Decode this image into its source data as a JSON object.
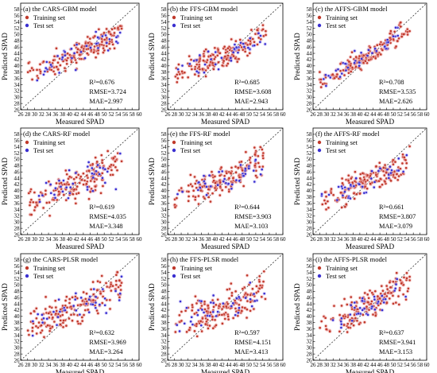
{
  "xlabel": "Measured SPAD",
  "ylabel": "Predicted SPAD",
  "legend": {
    "train_label": "Training set",
    "test_label": "Test set"
  },
  "colors": {
    "train": "#c0392b",
    "test": "#3a2fd0",
    "train_halo": "#f2b6b6",
    "test_halo": "#c9c2f5",
    "identity_line": "#333333"
  },
  "chart_data": [
    {
      "type": "scatter",
      "title": "(a) the CARS-GBM model",
      "xlim": [
        26,
        60
      ],
      "ylim": [
        26,
        60
      ],
      "legend_position": "top-left",
      "metrics": {
        "r2": "R²=0.676",
        "rmse": "RMSE=3.724",
        "mae": "MAE=2.997"
      },
      "trend": {
        "train": [
          [
            30,
            39.5
          ],
          [
            36,
            41
          ],
          [
            42,
            43.5
          ],
          [
            48,
            46.5
          ],
          [
            53,
            50
          ]
        ],
        "test": [
          [
            30,
            39
          ],
          [
            36,
            41
          ],
          [
            42,
            43.5
          ],
          [
            48,
            47.5
          ],
          [
            52,
            48.5
          ]
        ]
      },
      "x_ticks": [
        26,
        28,
        30,
        32,
        34,
        36,
        38,
        40,
        42,
        44,
        46,
        48,
        50,
        52,
        54,
        56,
        58,
        60
      ],
      "y_ticks": [
        26,
        28,
        30,
        32,
        34,
        36,
        38,
        40,
        42,
        44,
        46,
        48,
        50,
        52,
        54,
        56,
        58
      ]
    },
    {
      "type": "scatter",
      "title": "(d) the CARS-RF model",
      "xlim": [
        26,
        60
      ],
      "ylim": [
        26,
        60
      ],
      "legend_position": "top-left",
      "metrics": {
        "r2": "R²=0.619",
        "rmse": "RMSE=4.035",
        "mae": "MAE=3.348"
      },
      "trend": {
        "train": [
          [
            30,
            37.5
          ],
          [
            36,
            40.5
          ],
          [
            42,
            42.5
          ],
          [
            48,
            45
          ],
          [
            53,
            48.5
          ]
        ],
        "test": [
          [
            30,
            38
          ],
          [
            36,
            40.5
          ],
          [
            42,
            43
          ],
          [
            48,
            45.5
          ],
          [
            52,
            47
          ]
        ]
      },
      "x_ticks": [
        26,
        28,
        30,
        32,
        34,
        36,
        38,
        40,
        42,
        44,
        46,
        48,
        50,
        52,
        54,
        56,
        58,
        60
      ],
      "y_ticks": [
        26,
        28,
        30,
        32,
        34,
        36,
        38,
        40,
        42,
        44,
        46,
        48,
        50,
        52,
        54,
        56,
        58
      ]
    },
    {
      "type": "scatter",
      "title": "(g) the CARS-PLSR model",
      "xlim": [
        26,
        60
      ],
      "ylim": [
        26,
        60
      ],
      "legend_position": "top-left",
      "metrics": {
        "r2": "R²=0.632",
        "rmse": "RMSE=3.969",
        "mae": "MAE=3.264"
      },
      "trend": {
        "train": [
          [
            30,
            38
          ],
          [
            36,
            40.5
          ],
          [
            42,
            43
          ],
          [
            48,
            46
          ],
          [
            53,
            49
          ]
        ],
        "test": [
          [
            30,
            38.5
          ],
          [
            36,
            41
          ],
          [
            42,
            43
          ],
          [
            48,
            46
          ],
          [
            52,
            47.5
          ]
        ]
      },
      "x_ticks": [
        26,
        28,
        30,
        32,
        34,
        36,
        38,
        40,
        42,
        44,
        46,
        48,
        50,
        52,
        54,
        56,
        58,
        60
      ],
      "y_ticks": [
        26,
        28,
        30,
        32,
        34,
        36,
        38,
        40,
        42,
        44,
        46,
        48,
        50,
        52,
        54,
        56,
        58
      ]
    },
    {
      "type": "scatter",
      "title": "(b) the FFS-GBM model",
      "xlim": [
        26,
        60
      ],
      "ylim": [
        26,
        60
      ],
      "legend_position": "top-left",
      "metrics": {
        "r2": "R²=0.685",
        "rmse": "RMSE=3.608",
        "mae": "MAE=2.943"
      },
      "trend": {
        "train": [
          [
            30,
            38
          ],
          [
            36,
            40.5
          ],
          [
            42,
            43
          ],
          [
            48,
            46
          ],
          [
            53,
            49.5
          ]
        ],
        "test": [
          [
            30,
            38.5
          ],
          [
            36,
            41
          ],
          [
            42,
            43.5
          ],
          [
            48,
            46.5
          ],
          [
            52,
            48
          ]
        ]
      },
      "x_ticks": [
        26,
        28,
        30,
        32,
        34,
        36,
        38,
        40,
        42,
        44,
        46,
        48,
        50,
        52,
        54,
        56,
        58,
        60
      ],
      "y_ticks": [
        26,
        28,
        30,
        32,
        34,
        36,
        38,
        40,
        42,
        44,
        46,
        48,
        50,
        52,
        54,
        56,
        58
      ]
    },
    {
      "type": "scatter",
      "title": "(e) the FFS-RF model",
      "xlim": [
        26,
        60
      ],
      "ylim": [
        26,
        60
      ],
      "legend_position": "top-left",
      "metrics": {
        "r2": "R²=0.644",
        "rmse": "RMSE=3.903",
        "mae": "MAE=3.103"
      },
      "trend": {
        "train": [
          [
            30,
            38.5
          ],
          [
            36,
            40.5
          ],
          [
            42,
            43
          ],
          [
            48,
            45.5
          ],
          [
            53,
            49
          ]
        ],
        "test": [
          [
            30,
            38
          ],
          [
            36,
            40.5
          ],
          [
            42,
            43
          ],
          [
            48,
            46
          ],
          [
            52,
            47.5
          ]
        ]
      },
      "x_ticks": [
        26,
        28,
        30,
        32,
        34,
        36,
        38,
        40,
        42,
        44,
        46,
        48,
        50,
        52,
        54,
        56,
        58,
        60
      ],
      "y_ticks": [
        26,
        28,
        30,
        32,
        34,
        36,
        38,
        40,
        42,
        44,
        46,
        48,
        50,
        52,
        54,
        56,
        58
      ]
    },
    {
      "type": "scatter",
      "title": "(h) the FFS-PLSR model",
      "xlim": [
        26,
        60
      ],
      "ylim": [
        26,
        60
      ],
      "legend_position": "top-left",
      "metrics": {
        "r2": "R²=0.597",
        "rmse": "RMSE=4.151",
        "mae": "MAE=3.413"
      },
      "trend": {
        "train": [
          [
            30,
            39
          ],
          [
            36,
            40.5
          ],
          [
            42,
            42.5
          ],
          [
            48,
            45
          ],
          [
            53,
            48
          ]
        ],
        "test": [
          [
            30,
            39.5
          ],
          [
            36,
            41
          ],
          [
            42,
            43
          ],
          [
            48,
            45.5
          ],
          [
            52,
            46.5
          ]
        ]
      },
      "x_ticks": [
        26,
        28,
        30,
        32,
        34,
        36,
        38,
        40,
        42,
        44,
        46,
        48,
        50,
        52,
        54,
        56,
        58,
        60
      ],
      "y_ticks": [
        26,
        28,
        30,
        32,
        34,
        36,
        38,
        40,
        42,
        44,
        46,
        48,
        50,
        52,
        54,
        56,
        58
      ]
    },
    {
      "type": "scatter",
      "title": "(c) the AFFS-GBM model",
      "xlim": [
        26,
        60
      ],
      "ylim": [
        26,
        60
      ],
      "legend_position": "top-left",
      "metrics": {
        "r2": "R²=0.708",
        "rmse": "RMSE=3.535",
        "mae": "MAE=2.626"
      },
      "trend": {
        "train": [
          [
            30,
            35.5
          ],
          [
            36,
            39.5
          ],
          [
            42,
            43
          ],
          [
            48,
            47
          ],
          [
            53,
            51
          ]
        ],
        "test": [
          [
            30,
            36.5
          ],
          [
            36,
            40
          ],
          [
            42,
            43.5
          ],
          [
            48,
            47
          ],
          [
            52,
            49.5
          ]
        ]
      },
      "x_ticks": [
        26,
        28,
        30,
        32,
        34,
        36,
        38,
        40,
        42,
        44,
        46,
        48,
        50,
        52,
        54,
        56,
        58,
        60
      ],
      "y_ticks": [
        26,
        28,
        30,
        32,
        34,
        36,
        38,
        40,
        42,
        44,
        46,
        48,
        50,
        52,
        54,
        56,
        58
      ]
    },
    {
      "type": "scatter",
      "title": "(f) the AFFS-RF model",
      "xlim": [
        26,
        60
      ],
      "ylim": [
        26,
        60
      ],
      "legend_position": "top-left",
      "metrics": {
        "r2": "R²=0.661",
        "rmse": "RMSE=3.807",
        "mae": "MAE=3.079"
      },
      "trend": {
        "train": [
          [
            30,
            38
          ],
          [
            36,
            40.5
          ],
          [
            42,
            43
          ],
          [
            48,
            45.5
          ],
          [
            53,
            48.5
          ]
        ],
        "test": [
          [
            30,
            38
          ],
          [
            36,
            40.5
          ],
          [
            42,
            43
          ],
          [
            48,
            46
          ],
          [
            52,
            47.5
          ]
        ]
      },
      "x_ticks": [
        26,
        28,
        30,
        32,
        34,
        36,
        38,
        40,
        42,
        44,
        46,
        48,
        50,
        52,
        54,
        56,
        58,
        60
      ],
      "y_ticks": [
        26,
        28,
        30,
        32,
        34,
        36,
        38,
        40,
        42,
        44,
        46,
        48,
        50,
        52,
        54,
        56,
        58
      ]
    },
    {
      "type": "scatter",
      "title": "(i) the AFFS-PLSR model",
      "xlim": [
        26,
        60
      ],
      "ylim": [
        26,
        60
      ],
      "legend_position": "top-left",
      "metrics": {
        "r2": "R²=0.637",
        "rmse": "RMSE=3.941",
        "mae": "MAE=3.153"
      },
      "trend": {
        "train": [
          [
            30,
            37.5
          ],
          [
            36,
            40.5
          ],
          [
            42,
            43
          ],
          [
            48,
            46
          ],
          [
            53,
            49.5
          ]
        ],
        "test": [
          [
            30,
            38
          ],
          [
            36,
            40.5
          ],
          [
            42,
            43.5
          ],
          [
            48,
            46
          ],
          [
            52,
            47.5
          ]
        ]
      },
      "x_ticks": [
        26,
        28,
        30,
        32,
        34,
        36,
        38,
        40,
        42,
        44,
        46,
        48,
        50,
        52,
        54,
        56,
        58,
        60
      ],
      "y_ticks": [
        26,
        28,
        30,
        32,
        34,
        36,
        38,
        40,
        42,
        44,
        46,
        48,
        50,
        52,
        54,
        56,
        58
      ]
    }
  ]
}
